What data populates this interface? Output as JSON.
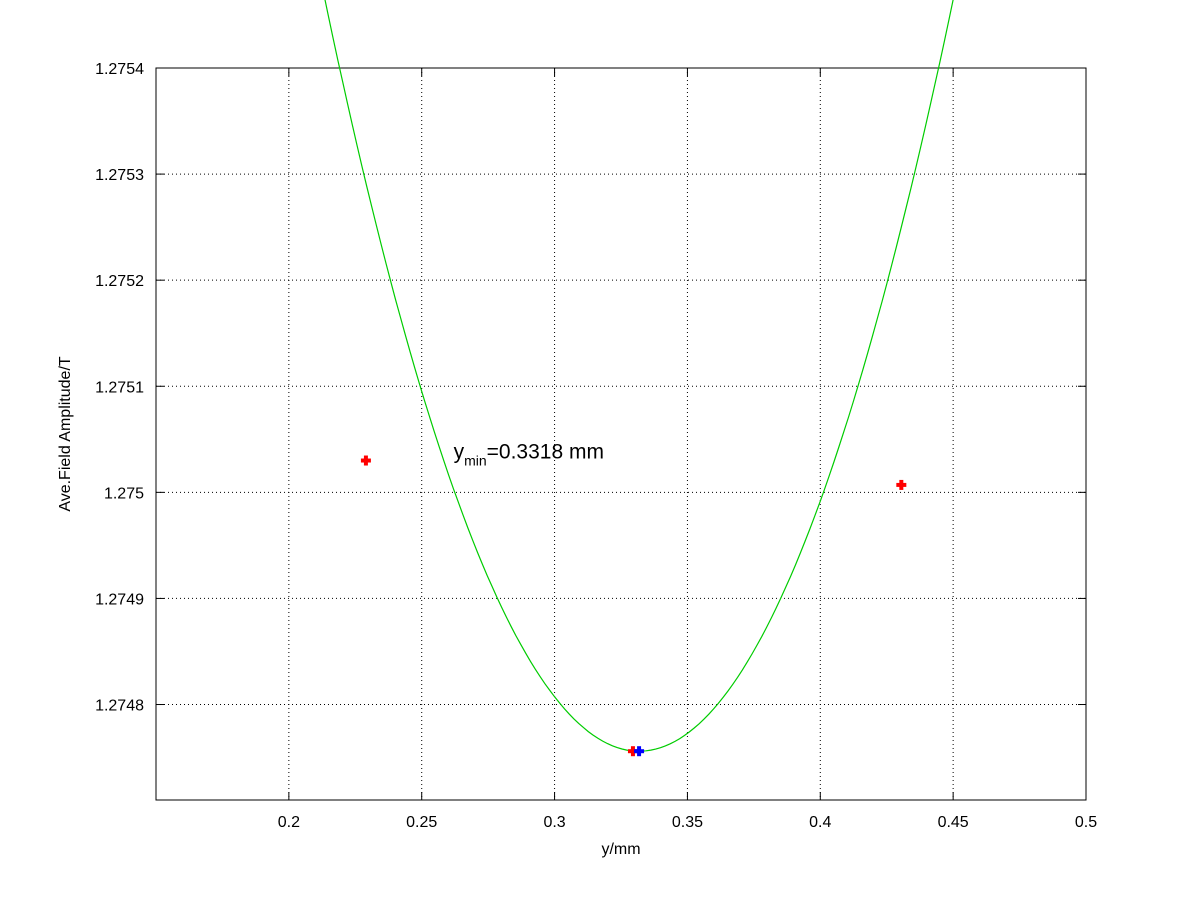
{
  "chart_data": {
    "type": "scatter",
    "title": "",
    "xlabel": "y/mm",
    "ylabel": "Ave.Field Amplitude/T",
    "xlim": [
      0.15,
      0.5
    ],
    "ylim": [
      1.27471,
      1.2754
    ],
    "grid": true,
    "x_ticks": [
      0.2,
      0.25,
      0.3,
      0.35,
      0.4,
      0.45,
      0.5
    ],
    "x_tick_labels": [
      "0.2",
      "0.25",
      "0.3",
      "0.35",
      "0.4",
      "0.45",
      "0.5"
    ],
    "y_ticks": [
      1.2748,
      1.2749,
      1.275,
      1.2751,
      1.2752,
      1.2753,
      1.2754
    ],
    "y_tick_labels": [
      "1.2748",
      "1.2749",
      "1.275",
      "1.2751",
      "1.2752",
      "1.2753",
      "1.2754"
    ],
    "series": [
      {
        "kind": "line",
        "color": "#00cc00",
        "fit": {
          "vertex_x": 0.3318,
          "vertex_y": 1.274756,
          "curvature": 0.0507,
          "x_range": [
            0.184,
            0.474
          ]
        }
      },
      {
        "kind": "marker",
        "color": "#ff0000",
        "x": [
          0.229,
          0.3295,
          0.4305
        ],
        "y": [
          1.27503,
          1.274756,
          1.275007
        ]
      },
      {
        "kind": "marker",
        "color": "#0000ff",
        "x": [
          0.3318
        ],
        "y": [
          1.274756
        ]
      }
    ],
    "annotations": [
      {
        "base": "y",
        "sub": "min",
        "rest": "=0.3318 mm",
        "x": 0.262,
        "y": 1.275032
      }
    ]
  }
}
